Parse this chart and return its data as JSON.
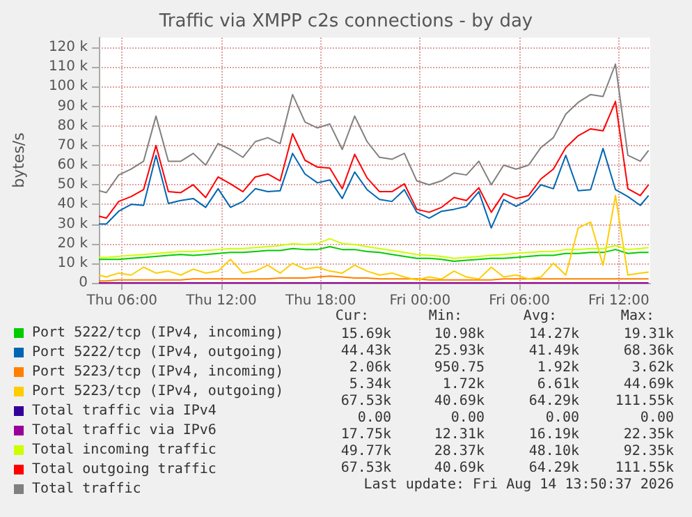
{
  "chart_data": {
    "type": "line",
    "title": "Traffic via XMPP c2s connections - by day",
    "ylabel": "bytes/s",
    "x": [
      "2026-08-13T04:36",
      "2026-08-13T05:03",
      "2026-08-13T05:48",
      "2026-08-13T06:33",
      "2026-08-13T07:18",
      "2026-08-13T08:03",
      "2026-08-13T08:48",
      "2026-08-13T09:33",
      "2026-08-13T10:18",
      "2026-08-13T11:03",
      "2026-08-13T11:48",
      "2026-08-13T12:33",
      "2026-08-13T13:18",
      "2026-08-13T14:03",
      "2026-08-13T14:48",
      "2026-08-13T15:33",
      "2026-08-13T16:18",
      "2026-08-13T17:03",
      "2026-08-13T17:48",
      "2026-08-13T18:33",
      "2026-08-13T19:18",
      "2026-08-13T20:03",
      "2026-08-13T20:48",
      "2026-08-13T21:33",
      "2026-08-13T22:18",
      "2026-08-13T23:03",
      "2026-08-13T23:48",
      "2026-08-14T00:33",
      "2026-08-14T01:18",
      "2026-08-14T02:03",
      "2026-08-14T02:48",
      "2026-08-14T03:33",
      "2026-08-14T04:18",
      "2026-08-14T05:03",
      "2026-08-14T05:48",
      "2026-08-14T06:33",
      "2026-08-14T07:18",
      "2026-08-14T08:03",
      "2026-08-14T08:48",
      "2026-08-14T09:33",
      "2026-08-14T10:18",
      "2026-08-14T11:03",
      "2026-08-14T11:48",
      "2026-08-14T12:33",
      "2026-08-14T13:18",
      "2026-08-14T13:48"
    ],
    "xlim": [
      "2026-08-13T04:36",
      "2026-08-14T13:54"
    ],
    "xticks": [
      {
        "value": "2026-08-13T06:00",
        "label": "Thu 06:00"
      },
      {
        "value": "2026-08-13T12:00",
        "label": "Thu 12:00"
      },
      {
        "value": "2026-08-13T18:00",
        "label": "Thu 18:00"
      },
      {
        "value": "2026-08-14T00:00",
        "label": "Fri 00:00"
      },
      {
        "value": "2026-08-14T06:00",
        "label": "Fri 06:00"
      },
      {
        "value": "2026-08-14T12:00",
        "label": "Fri 12:00"
      }
    ],
    "ylim": [
      0,
      125000
    ],
    "yticks": [
      0,
      {
        "value": 10000,
        "label": "10 k"
      },
      {
        "value": 20000,
        "label": "20 k"
      },
      {
        "value": 30000,
        "label": "30 k"
      },
      {
        "value": 40000,
        "label": "40 k"
      },
      {
        "value": 50000,
        "label": "50 k"
      },
      {
        "value": 60000,
        "label": "60 k"
      },
      {
        "value": 70000,
        "label": "70 k"
      },
      {
        "value": 80000,
        "label": "80 k"
      },
      {
        "value": 90000,
        "label": "90 k"
      },
      {
        "value": 100000,
        "label": "100 k"
      },
      {
        "value": 110000,
        "label": "110 k"
      },
      {
        "value": 120000,
        "label": "120 k"
      }
    ],
    "grid": true,
    "legend": "bottom",
    "marker": "none",
    "line_style": "solid",
    "series": [
      {
        "name": "Port 5222/tcp (IPv4, incoming)",
        "color": "#00cc00",
        "values": [
          12000,
          12000,
          12000,
          12500,
          13000,
          13500,
          14000,
          14500,
          14000,
          14500,
          15000,
          15500,
          15500,
          16000,
          16500,
          16500,
          17500,
          17000,
          17000,
          18500,
          17000,
          17000,
          16000,
          15500,
          14500,
          13500,
          12500,
          12500,
          12000,
          11000,
          11500,
          12000,
          12500,
          12500,
          13000,
          13500,
          14000,
          14000,
          15000,
          15000,
          15500,
          15500,
          17000,
          15000,
          15500,
          15500
        ]
      },
      {
        "name": "Port 5222/tcp (IPv4, outgoing)",
        "color": "#0066b3",
        "values": [
          30000,
          30000,
          36500,
          40000,
          39500,
          65000,
          40500,
          42000,
          43000,
          38500,
          48000,
          38500,
          41500,
          48000,
          46500,
          47000,
          66000,
          55500,
          51000,
          52500,
          43000,
          56500,
          47500,
          42500,
          41500,
          47500,
          36000,
          33000,
          36500,
          37500,
          39000,
          46500,
          28000,
          42500,
          39000,
          42500,
          50000,
          48000,
          65000,
          47000,
          47500,
          68500,
          47500,
          44000,
          39500,
          44500
        ]
      },
      {
        "name": "Port 5223/tcp (IPv4, incoming)",
        "color": "#ff8000",
        "values": [
          1000,
          1000,
          1500,
          1500,
          1500,
          1500,
          1500,
          1500,
          2000,
          2000,
          2000,
          2000,
          2000,
          2000,
          2000,
          2500,
          2500,
          2500,
          3000,
          3500,
          3000,
          2500,
          2500,
          2000,
          2000,
          2000,
          2000,
          1500,
          1500,
          1500,
          1500,
          1500,
          1500,
          2000,
          2000,
          2000,
          2000,
          2000,
          2000,
          2000,
          2000,
          2000,
          2000,
          2000,
          2000,
          2000
        ]
      },
      {
        "name": "Port 5223/tcp (IPv4, outgoing)",
        "color": "#ffcc00",
        "values": [
          4000,
          3000,
          5000,
          4000,
          8000,
          5000,
          6000,
          4000,
          7000,
          5000,
          6000,
          12000,
          5000,
          6000,
          9000,
          5000,
          10000,
          7000,
          8000,
          6000,
          5000,
          9000,
          6000,
          4000,
          5000,
          3000,
          1500,
          3000,
          2000,
          6000,
          3000,
          2000,
          8000,
          3000,
          4000,
          2000,
          3000,
          10000,
          4000,
          28000,
          31000,
          9000,
          44500,
          4000,
          5000,
          5500
        ]
      },
      {
        "name": "Total traffic via IPv4",
        "color": "#330099",
        "values": [
          null,
          null,
          null,
          null,
          null,
          null,
          null,
          null,
          null,
          null,
          null,
          null,
          null,
          null,
          null,
          null,
          null,
          null,
          null,
          null,
          null,
          null,
          null,
          null,
          null,
          null,
          null,
          null,
          null,
          null,
          null,
          null,
          null,
          null,
          null,
          null,
          null,
          null,
          null,
          null,
          null,
          null,
          null,
          null,
          null,
          null
        ]
      },
      {
        "name": "Total traffic via IPv6",
        "color": "#990099",
        "values": [
          0,
          0,
          0,
          0,
          0,
          0,
          0,
          0,
          0,
          0,
          0,
          0,
          0,
          0,
          0,
          0,
          0,
          0,
          0,
          0,
          0,
          0,
          0,
          0,
          0,
          0,
          0,
          0,
          0,
          0,
          0,
          0,
          0,
          0,
          0,
          0,
          0,
          0,
          0,
          0,
          0,
          0,
          0,
          0,
          0,
          0
        ]
      },
      {
        "name": "Total incoming traffic",
        "color": "#ccff00",
        "values": [
          13000,
          13000,
          13500,
          14000,
          14500,
          15000,
          15500,
          16000,
          16000,
          16500,
          17000,
          17500,
          17500,
          18000,
          18500,
          19000,
          20000,
          19500,
          20000,
          22500,
          20000,
          19500,
          18500,
          17500,
          16500,
          15500,
          14500,
          14000,
          13500,
          12500,
          13000,
          13500,
          14000,
          14500,
          15000,
          15500,
          16000,
          16000,
          17000,
          17000,
          17500,
          17500,
          19000,
          17000,
          17500,
          18000
        ]
      },
      {
        "name": "Total outgoing traffic",
        "color": "#ff0000",
        "values": [
          34000,
          33000,
          41500,
          44000,
          47500,
          70000,
          46500,
          46000,
          50000,
          43500,
          54000,
          50500,
          46500,
          54000,
          55500,
          52000,
          76000,
          62500,
          59000,
          58500,
          48000,
          65500,
          53500,
          46500,
          46500,
          50500,
          37500,
          36000,
          38500,
          43500,
          42000,
          48500,
          36000,
          45500,
          43000,
          44500,
          53000,
          58000,
          69000,
          75000,
          78500,
          77500,
          92500,
          48000,
          44500,
          50000
        ]
      },
      {
        "name": "Total traffic",
        "color": "#808080",
        "values": [
          47000,
          46000,
          55000,
          58000,
          62000,
          85000,
          62000,
          62000,
          66000,
          60000,
          71000,
          68000,
          64000,
          72000,
          74000,
          71000,
          96000,
          82000,
          79000,
          81000,
          68000,
          85000,
          72000,
          64000,
          63000,
          66000,
          52000,
          50000,
          52000,
          56000,
          55000,
          62000,
          50000,
          60000,
          58000,
          60000,
          69000,
          74000,
          86000,
          92000,
          96000,
          95000,
          111500,
          65000,
          62000,
          67500
        ]
      }
    ],
    "annotations": [
      "Cur:",
      "Min:",
      "Avg:",
      "Max:",
      "15.69k",
      "10.98k",
      "14.27k",
      "19.31k",
      "44.43k",
      "25.93k",
      "41.49k",
      "68.36k",
      "2.06k",
      "950.75",
      "1.92k",
      "3.62k",
      "5.34k",
      "1.72k",
      "6.61k",
      "44.69k",
      "67.53k",
      "40.69k",
      "64.29k",
      "111.55k",
      "0.00",
      "0.00",
      "0.00",
      "0.00",
      "17.75k",
      "12.31k",
      "16.19k",
      "22.35k",
      "49.77k",
      "28.37k",
      "48.10k",
      "92.35k",
      "67.53k",
      "40.69k",
      "64.29k",
      "111.55k",
      "Last update: Fri Aug 14 13:50:37 2026"
    ]
  }
}
